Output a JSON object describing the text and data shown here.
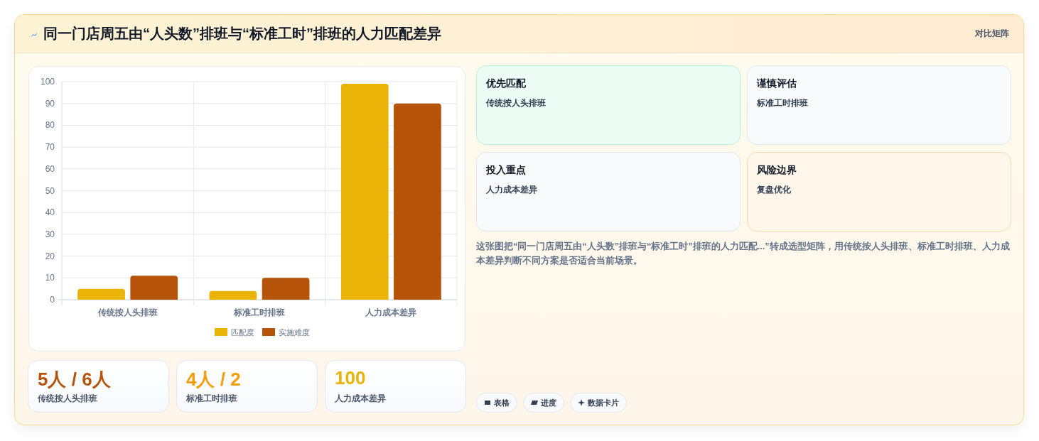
{
  "chart_data": [
    {
      "type": "other",
      "title": "同一门店周五由“人头数”排班与“标准工时”排班的人力匹配差异",
      "annotations": [
        "对比矩阵"
      ]
    },
    {
      "type": "bar",
      "categories": [
        "传统按人头排班",
        "标准工时排班",
        "人力成本差异"
      ],
      "series": [
        {
          "name": "匹配度",
          "color": "#eab308",
          "values": [
            5,
            4,
            99
          ]
        },
        {
          "name": "实施难度",
          "color": "#b45309",
          "values": [
            11,
            10,
            90
          ]
        }
      ],
      "ylim": [
        0,
        100
      ],
      "yticks": [
        0,
        10,
        20,
        30,
        40,
        50,
        60,
        70,
        80,
        90,
        100
      ],
      "grid": true,
      "legend": "bottom"
    },
    {
      "type": "other",
      "annotations": [
        "优先匹配",
        "传统按人头排班",
        "谨慎评估",
        "标准工时排班",
        "投入重点",
        "人力成本差异",
        "风险边界",
        "复盘优化"
      ]
    },
    {
      "type": "other",
      "annotations": [
        "这张图把“同一门店周五由“人头数”排班与“标准工时”排班的人力匹配...”转成选型矩阵，用传统按人头排班、标准工时排班、人力成本差异判断不同方案是否适合当前场景。"
      ]
    },
    {
      "type": "other",
      "annotations": [
        "5人 / 6人",
        "传统按人头排班",
        "4人 / 2",
        "标准工时排班",
        "100",
        "人力成本差异"
      ]
    },
    {
      "type": "other",
      "annotations": [
        "表格",
        "进度",
        "数据卡片"
      ]
    }
  ]
}
